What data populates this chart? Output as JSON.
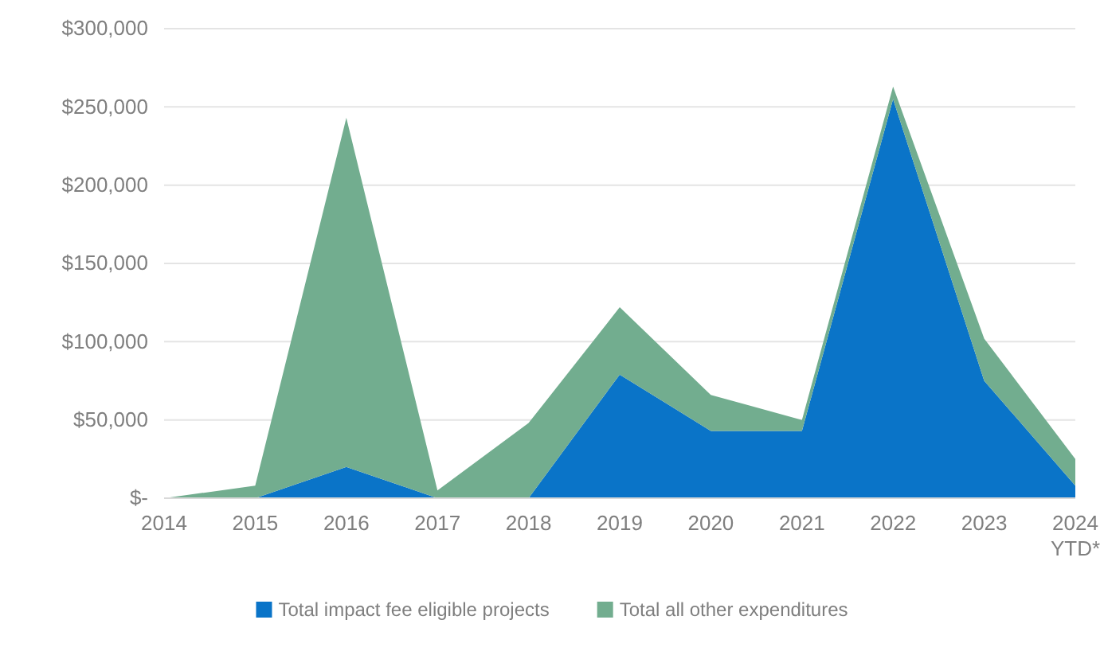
{
  "chart_data": {
    "type": "area",
    "stacked": true,
    "categories": [
      "2014",
      "2015",
      "2016",
      "2017",
      "2018",
      "2019",
      "2020",
      "2021",
      "2022",
      "2023",
      "2024\nYTD*"
    ],
    "series": [
      {
        "name": "Total impact fee eligible projects",
        "color": "#0a74c8",
        "values": [
          0,
          0,
          20000,
          0,
          0,
          79000,
          43000,
          43000,
          255000,
          75000,
          8000
        ]
      },
      {
        "name": "Total all other expenditures",
        "color": "#72ad8f",
        "values": [
          0,
          8000,
          223000,
          5000,
          48000,
          43000,
          23000,
          7000,
          8000,
          27000,
          17000
        ]
      }
    ],
    "ylim": [
      0,
      300000
    ],
    "yticks": [
      {
        "value": 0,
        "label": "$-"
      },
      {
        "value": 50000,
        "label": "$50,000"
      },
      {
        "value": 100000,
        "label": "$100,000"
      },
      {
        "value": 150000,
        "label": "$150,000"
      },
      {
        "value": 200000,
        "label": "$200,000"
      },
      {
        "value": 250000,
        "label": "$250,000"
      },
      {
        "value": 300000,
        "label": "$300,000"
      }
    ],
    "grid": "y",
    "legend": "bottom"
  }
}
